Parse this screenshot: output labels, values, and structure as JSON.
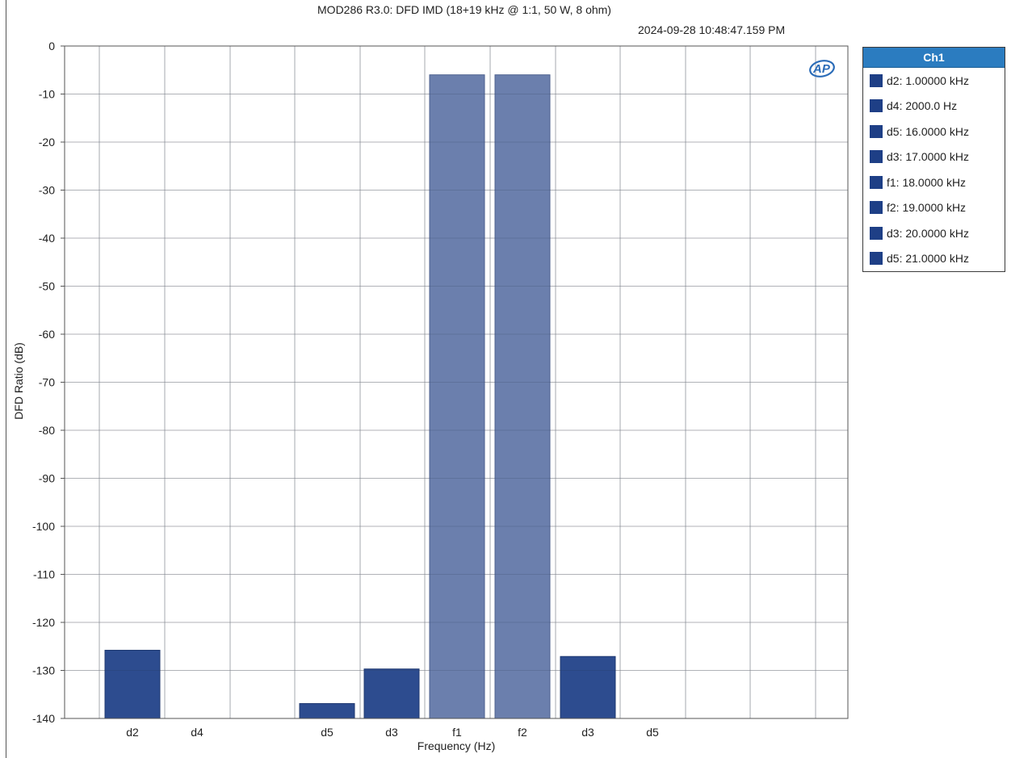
{
  "title": "MOD286 R3.0: DFD IMD (18+19 kHz @ 1:1, 50 W, 8 ohm)",
  "timestamp": "2024-09-28 10:48:47.159 PM",
  "legend": {
    "header": "Ch1",
    "items": [
      {
        "label": "d2: 1.00000 kHz"
      },
      {
        "label": "d4: 2000.0 Hz"
      },
      {
        "label": "d5: 16.0000 kHz"
      },
      {
        "label": "d3: 17.0000 kHz"
      },
      {
        "label": "f1: 18.0000 kHz"
      },
      {
        "label": "f2: 19.0000 kHz"
      },
      {
        "label": "d3: 20.0000 kHz"
      },
      {
        "label": "d5: 21.0000 kHz"
      }
    ]
  },
  "colors": {
    "distortion_bar": "#2d4c8f",
    "fundamental_bar": "#6b7fad",
    "swatch": "#1e3f86",
    "legend_header": "#2b7cc0",
    "grid": "#cfcfcf"
  },
  "chart_data": {
    "type": "bar",
    "xlabel": "Frequency (Hz)",
    "ylabel": "DFD Ratio (dB)",
    "ylim": [
      -140,
      0
    ],
    "yticks": [
      "0",
      "-10",
      "-20",
      "-30",
      "-40",
      "-50",
      "-60",
      "-70",
      "-80",
      "-90",
      "-100",
      "-110",
      "-120",
      "-130",
      "-140"
    ],
    "grid": true,
    "legend_position": "right",
    "categories": [
      "d2",
      "d4",
      "d5",
      "d3",
      "f1",
      "f2",
      "d3",
      "d5"
    ],
    "values": [
      -125.8,
      null,
      -136.9,
      -129.7,
      -6.0,
      -6.0,
      -127.1,
      null
    ],
    "bar_kind": [
      "distortion",
      "distortion",
      "distortion",
      "distortion",
      "fundamental",
      "fundamental",
      "distortion",
      "distortion"
    ]
  }
}
